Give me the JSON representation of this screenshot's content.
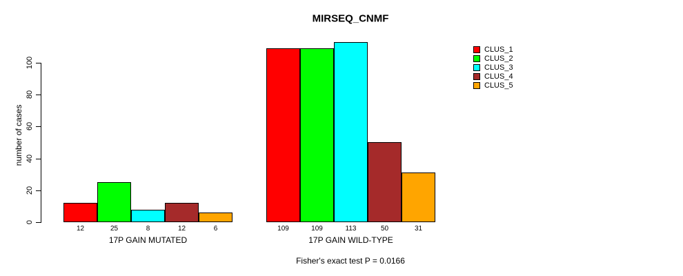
{
  "chart_data": {
    "type": "bar",
    "title": "MIRSEQ_CNMF",
    "ylabel": "number of cases",
    "xlabel": "",
    "yticks": [
      0,
      20,
      40,
      60,
      80,
      100
    ],
    "axis_range": [
      0,
      100
    ],
    "ylim": [
      0,
      113
    ],
    "grid": false,
    "legend_position": "top-right",
    "categories": [
      "17P GAIN MUTATED",
      "17P GAIN WILD-TYPE"
    ],
    "series": [
      {
        "name": "CLUS_1",
        "color": "#FF0000",
        "values": [
          12,
          109
        ]
      },
      {
        "name": "CLUS_2",
        "color": "#00FF00",
        "values": [
          25,
          109
        ]
      },
      {
        "name": "CLUS_3",
        "color": "#00FFFF",
        "values": [
          8,
          113
        ]
      },
      {
        "name": "CLUS_4",
        "color": "#A52A2A",
        "values": [
          12,
          50
        ]
      },
      {
        "name": "CLUS_5",
        "color": "#FFA500",
        "values": [
          6,
          31
        ]
      }
    ],
    "bar_value_labels": [
      [
        12,
        25,
        8,
        12,
        6
      ],
      [
        109,
        109,
        113,
        50,
        31
      ]
    ],
    "annotation": "Fisher's exact test P = 0.0166"
  }
}
